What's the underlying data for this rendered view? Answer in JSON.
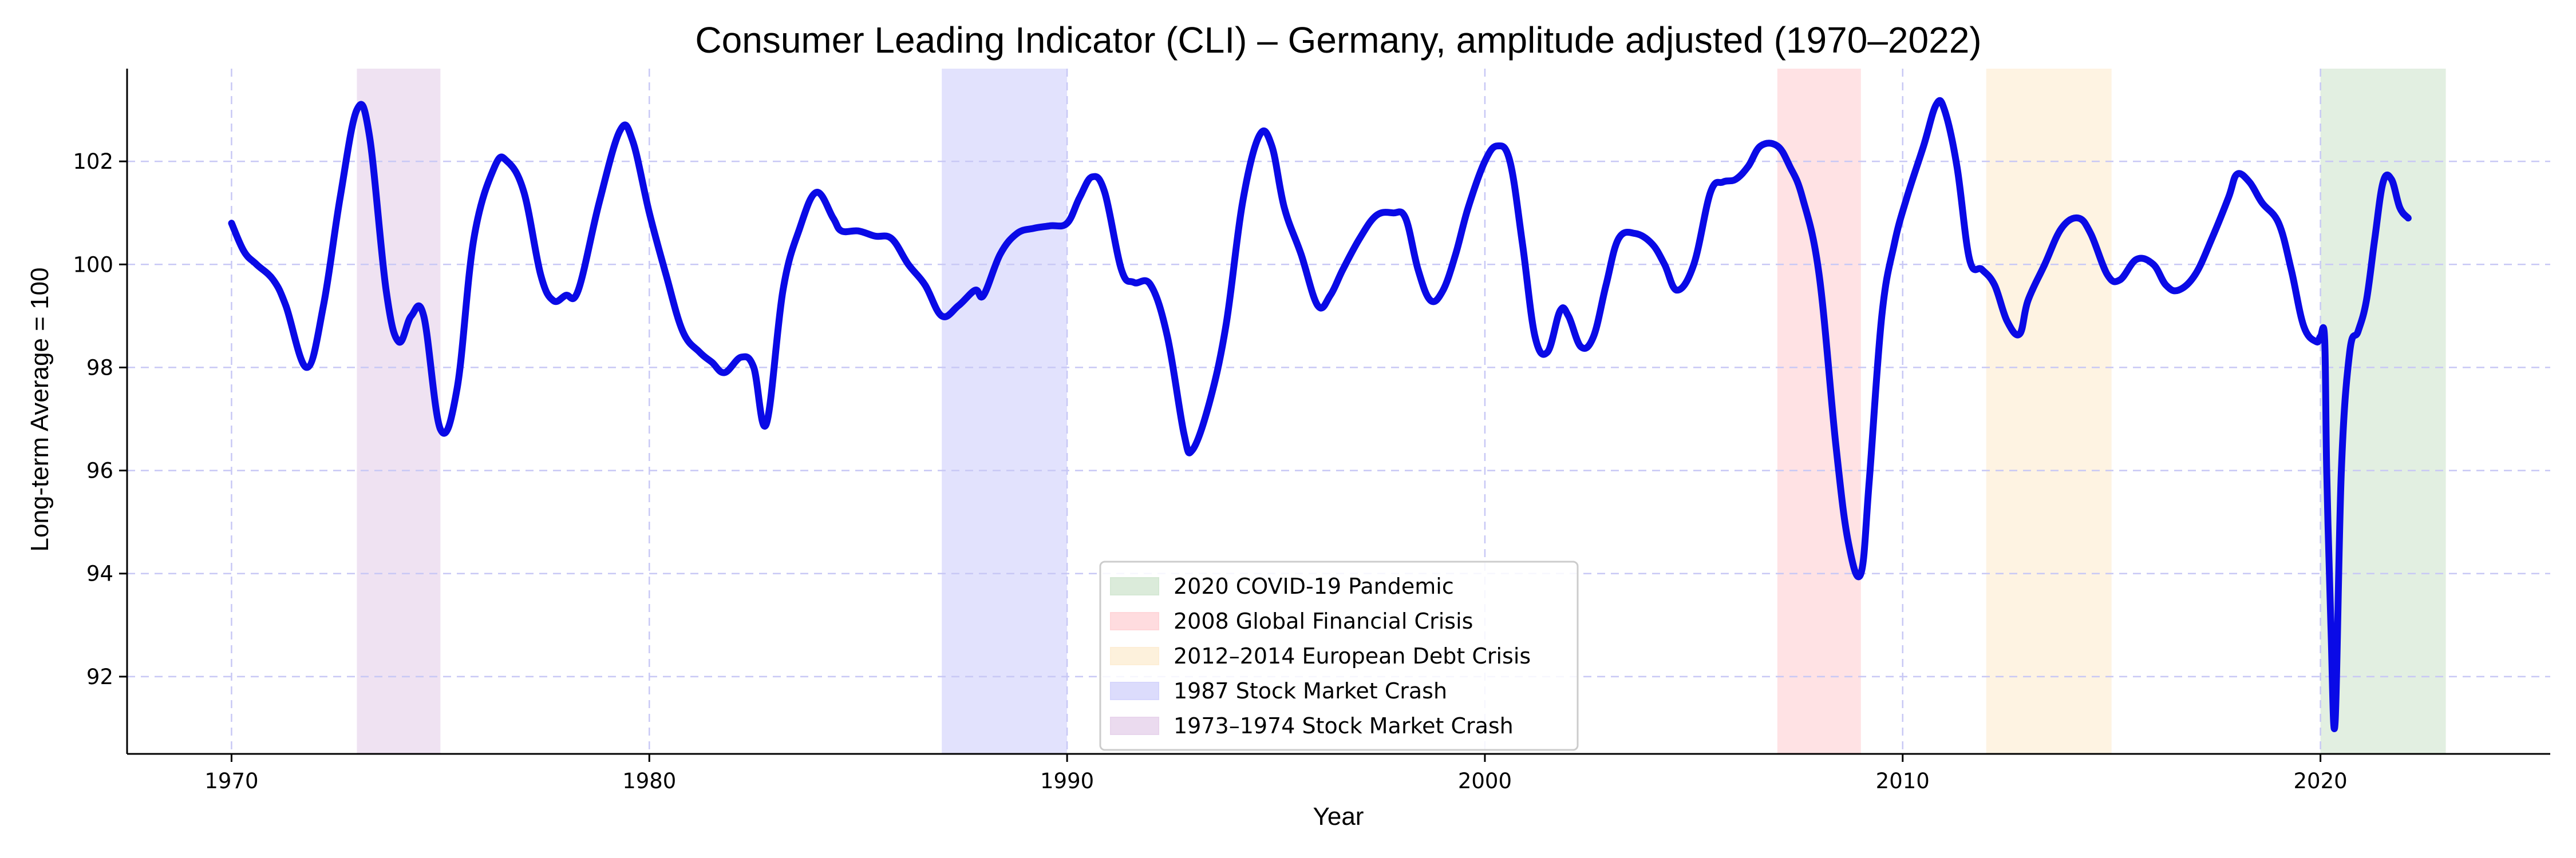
{
  "chart_data": {
    "type": "line",
    "title": "Consumer Leading Indicator (CLI) – Germany, amplitude adjusted (1970–2022)",
    "xlabel": "Year",
    "ylabel": "Long-term Average = 100",
    "xlim": [
      1967.5,
      2025.5
    ],
    "ylim": [
      90.5,
      103.8
    ],
    "x_ticks": [
      1970,
      1980,
      1990,
      2000,
      2010,
      2020
    ],
    "y_ticks": [
      92,
      94,
      96,
      98,
      100,
      102
    ],
    "grid": true,
    "legend_position": "bottom-center",
    "line_color": "#0a0ae6",
    "series": [
      {
        "name": "",
        "x": [
          1970.0,
          1970.3,
          1970.6,
          1971.0,
          1971.3,
          1971.8,
          1972.2,
          1972.6,
          1973.0,
          1973.3,
          1973.7,
          1974.0,
          1974.3,
          1974.6,
          1975.0,
          1975.4,
          1975.8,
          1976.3,
          1976.6,
          1977.0,
          1977.4,
          1977.7,
          1978.0,
          1978.3,
          1978.8,
          1979.3,
          1979.6,
          1980.0,
          1980.4,
          1980.8,
          1981.2,
          1981.5,
          1981.8,
          1982.2,
          1982.5,
          1982.8,
          1983.2,
          1983.6,
          1984.0,
          1984.4,
          1984.6,
          1985.0,
          1985.4,
          1985.8,
          1986.2,
          1986.6,
          1987.0,
          1987.4,
          1987.8,
          1988.0,
          1988.4,
          1988.8,
          1989.2,
          1989.6,
          1990.0,
          1990.3,
          1990.6,
          1990.9,
          1991.3,
          1991.6,
          1992.0,
          1992.4,
          1992.8,
          1993.0,
          1993.4,
          1993.8,
          1994.2,
          1994.6,
          1994.9,
          1995.2,
          1995.6,
          1996.0,
          1996.3,
          1996.6,
          1997.0,
          1997.4,
          1997.8,
          1998.1,
          1998.4,
          1998.7,
          1999.0,
          1999.3,
          1999.6,
          2000.0,
          2000.3,
          2000.6,
          2000.9,
          2001.2,
          2001.5,
          2001.8,
          2002.0,
          2002.3,
          2002.6,
          2002.9,
          2003.2,
          2003.6,
          2004.0,
          2004.3,
          2004.6,
          2005.0,
          2005.4,
          2005.7,
          2006.0,
          2006.3,
          2006.6,
          2007.0,
          2007.3,
          2007.6,
          2008.0,
          2008.4,
          2008.7,
          2009.0,
          2009.2,
          2009.5,
          2009.8,
          2010.1,
          2010.5,
          2010.8,
          2011.0,
          2011.3,
          2011.6,
          2011.9,
          2012.2,
          2012.5,
          2012.8,
          2013.0,
          2013.4,
          2013.8,
          2014.2,
          2014.5,
          2014.9,
          2015.2,
          2015.6,
          2016.0,
          2016.3,
          2016.6,
          2017.0,
          2017.4,
          2017.8,
          2018.0,
          2018.3,
          2018.6,
          2019.0,
          2019.3,
          2019.6,
          2019.9,
          2020.0,
          2020.1,
          2020.15,
          2020.25,
          2020.35,
          2020.5,
          2020.7,
          2020.9,
          2021.1,
          2021.3,
          2021.5,
          2021.7,
          2021.9,
          2022.1
        ],
        "values": [
          100.8,
          100.25,
          100.0,
          99.7,
          99.2,
          98.0,
          99.2,
          101.3,
          103.0,
          102.5,
          99.5,
          98.5,
          99.0,
          99.0,
          96.8,
          97.6,
          100.5,
          101.9,
          102.0,
          101.4,
          99.8,
          99.3,
          99.4,
          99.5,
          101.2,
          102.6,
          102.4,
          101.0,
          99.8,
          98.7,
          98.3,
          98.1,
          97.9,
          98.2,
          98.0,
          96.9,
          99.5,
          100.7,
          101.4,
          100.9,
          100.65,
          100.65,
          100.55,
          100.5,
          100.0,
          99.6,
          99.0,
          99.2,
          99.5,
          99.4,
          100.2,
          100.6,
          100.7,
          100.75,
          100.8,
          101.3,
          101.7,
          101.4,
          99.9,
          99.65,
          99.6,
          98.6,
          96.7,
          96.4,
          97.3,
          98.8,
          101.2,
          102.5,
          102.3,
          101.1,
          100.2,
          99.2,
          99.4,
          99.9,
          100.5,
          100.95,
          101.0,
          100.9,
          99.9,
          99.3,
          99.5,
          100.2,
          101.1,
          102.0,
          102.3,
          102.0,
          100.4,
          98.6,
          98.3,
          99.1,
          99.0,
          98.4,
          98.6,
          99.6,
          100.5,
          100.6,
          100.4,
          100.0,
          99.5,
          100.0,
          101.4,
          101.6,
          101.65,
          101.9,
          102.3,
          102.3,
          101.9,
          101.3,
          99.8,
          96.5,
          94.6,
          94.0,
          95.8,
          99.0,
          100.4,
          101.3,
          102.3,
          103.1,
          103.0,
          101.9,
          100.1,
          99.9,
          99.6,
          98.9,
          98.65,
          99.3,
          100.0,
          100.7,
          100.9,
          100.6,
          99.8,
          99.7,
          100.1,
          100.0,
          99.6,
          99.5,
          99.8,
          100.5,
          101.3,
          101.75,
          101.6,
          101.2,
          100.8,
          99.9,
          98.8,
          98.5,
          98.6,
          98.55,
          96.0,
          93.0,
          91.1,
          96.0,
          98.3,
          98.7,
          99.3,
          100.5,
          101.6,
          101.65,
          101.1,
          100.9
        ]
      }
    ],
    "shaded_periods": [
      {
        "label": "2020 COVID-19 Pandemic",
        "start": 2020.0,
        "end": 2023.0,
        "color": "#d5e8d4"
      },
      {
        "label": "2008 Global Financial Crisis",
        "start": 2007.0,
        "end": 2009.0,
        "color": "#ffd6d9"
      },
      {
        "label": "2012–2014 European Debt Crisis",
        "start": 2012.0,
        "end": 2015.0,
        "color": "#fdeed6"
      },
      {
        "label": "1987 Stock Market Crash",
        "start": 1987.0,
        "end": 1990.0,
        "color": "#d6d6fc"
      },
      {
        "label": "1973–1974 Stock Market Crash",
        "start": 1973.0,
        "end": 1975.0,
        "color": "#e8d5ec"
      }
    ]
  }
}
